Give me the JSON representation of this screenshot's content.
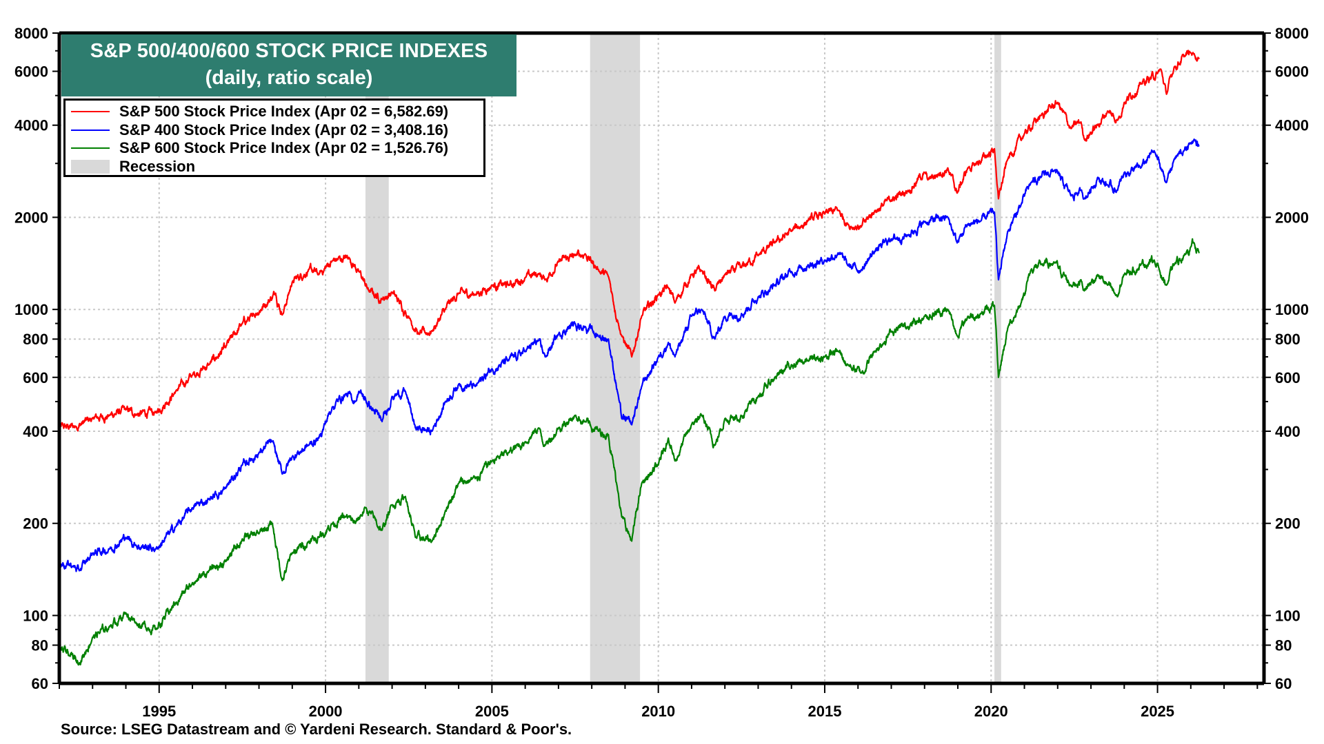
{
  "chart_data": {
    "type": "line",
    "title": "S&P 500/400/600 STOCK PRICE INDEXES",
    "subtitle": "(daily, ratio scale)",
    "xlabel": "",
    "ylabel": "",
    "y_scale": "log",
    "ylim": [
      60,
      8000
    ],
    "xlim": [
      1992.0,
      2028.2
    ],
    "grid": true,
    "legend_position": "top-left",
    "y_ticks": [
      60,
      80,
      100,
      200,
      400,
      600,
      800,
      1000,
      2000,
      4000,
      6000,
      8000
    ],
    "y_tick_labels": [
      "60",
      "80",
      "100",
      "200",
      "400",
      "600",
      "800",
      "1000",
      "2000",
      "4000",
      "6000",
      "8000"
    ],
    "y_minor_ticks": [
      70,
      90,
      300,
      500,
      700,
      900,
      3000,
      5000,
      7000
    ],
    "x_ticks": [
      1995,
      2000,
      2005,
      2010,
      2015,
      2020,
      2025
    ],
    "x_tick_labels": [
      "1995",
      "2000",
      "2005",
      "2010",
      "2015",
      "2020",
      "2025"
    ],
    "recessions": [
      {
        "start": 2001.2,
        "end": 2001.9
      },
      {
        "start": 2007.95,
        "end": 2009.45
      },
      {
        "start": 2020.1,
        "end": 2020.3
      }
    ],
    "series": [
      {
        "name": "S&P 500 Stock Price Index (Apr 02 = 6,582.69)",
        "color": "#ff0000",
        "x": [
          1992.0,
          1992.5,
          1993.0,
          1993.5,
          1994.0,
          1994.3,
          1994.9,
          1995.5,
          1996.0,
          1996.5,
          1997.0,
          1997.5,
          1997.8,
          1998.5,
          1998.7,
          1999.0,
          1999.5,
          1999.8,
          2000.2,
          2000.7,
          2001.0,
          2001.3,
          2001.7,
          2002.0,
          2002.5,
          2002.8,
          2003.2,
          2003.6,
          2004.0,
          2004.5,
          2005.0,
          2005.5,
          2006.0,
          2006.4,
          2006.6,
          2007.0,
          2007.5,
          2007.8,
          2008.2,
          2008.5,
          2008.8,
          2008.9,
          2009.2,
          2009.5,
          2010.0,
          2010.3,
          2010.5,
          2011.0,
          2011.3,
          2011.7,
          2012.0,
          2012.5,
          2013.0,
          2013.5,
          2014.0,
          2014.5,
          2015.0,
          2015.4,
          2015.7,
          2016.1,
          2016.5,
          2017.0,
          2017.5,
          2018.0,
          2018.1,
          2018.7,
          2018.98,
          2019.3,
          2019.5,
          2020.1,
          2020.22,
          2020.5,
          2021.0,
          2021.5,
          2022.0,
          2022.4,
          2022.7,
          2022.8,
          2023.2,
          2023.5,
          2023.8,
          2024.0,
          2024.5,
          2025.0,
          2025.1,
          2025.27,
          2025.5,
          2025.8,
          2026.0,
          2026.1,
          2026.25
        ],
        "y": [
          410,
          415,
          440,
          450,
          470,
          455,
          460,
          540,
          610,
          660,
          750,
          900,
          950,
          1130,
          960,
          1230,
          1350,
          1300,
          1440,
          1480,
          1330,
          1150,
          1080,
          1140,
          950,
          830,
          850,
          1000,
          1130,
          1120,
          1200,
          1200,
          1270,
          1310,
          1250,
          1430,
          1500,
          1520,
          1350,
          1280,
          900,
          820,
          700,
          950,
          1120,
          1180,
          1050,
          1300,
          1340,
          1150,
          1300,
          1370,
          1500,
          1650,
          1800,
          1950,
          2050,
          2110,
          1900,
          1860,
          2100,
          2280,
          2450,
          2800,
          2650,
          2900,
          2400,
          2900,
          2950,
          3350,
          2300,
          3100,
          3750,
          4300,
          4750,
          3900,
          4100,
          3600,
          4000,
          4450,
          4150,
          4750,
          5450,
          5900,
          6100,
          5050,
          6200,
          6700,
          6900,
          6850,
          6583
        ]
      },
      {
        "name": "S&P 400 Stock Price Index (Apr 02 = 3,408.16)",
        "color": "#0000ff",
        "x": [
          1992.0,
          1992.4,
          1992.6,
          1993.0,
          1993.5,
          1994.0,
          1994.3,
          1994.9,
          1995.5,
          1996.0,
          1996.5,
          1997.0,
          1997.5,
          1998.0,
          1998.4,
          1998.7,
          1999.0,
          1999.5,
          1999.8,
          2000.2,
          2000.6,
          2000.9,
          2001.0,
          2001.7,
          2002.0,
          2002.4,
          2002.7,
          2003.2,
          2003.6,
          2004.0,
          2004.5,
          2005.0,
          2005.5,
          2006.0,
          2006.4,
          2006.6,
          2007.0,
          2007.5,
          2007.8,
          2008.2,
          2008.5,
          2008.8,
          2008.9,
          2009.2,
          2009.5,
          2010.0,
          2010.3,
          2010.5,
          2011.0,
          2011.3,
          2011.7,
          2012.0,
          2012.5,
          2013.0,
          2013.5,
          2014.0,
          2014.5,
          2015.0,
          2015.4,
          2015.7,
          2016.1,
          2016.5,
          2017.0,
          2017.5,
          2018.0,
          2018.7,
          2018.98,
          2019.3,
          2019.7,
          2020.1,
          2020.22,
          2020.5,
          2020.9,
          2021.2,
          2021.5,
          2021.9,
          2022.4,
          2022.7,
          2022.8,
          2023.2,
          2023.5,
          2023.8,
          2024.0,
          2024.5,
          2024.9,
          2025.27,
          2025.5,
          2025.8,
          2026.0,
          2026.1,
          2026.25
        ],
        "y": [
          150,
          145,
          140,
          160,
          165,
          180,
          170,
          165,
          195,
          225,
          240,
          260,
          310,
          340,
          370,
          290,
          330,
          360,
          380,
          480,
          530,
          500,
          540,
          430,
          520,
          540,
          410,
          400,
          500,
          570,
          560,
          640,
          680,
          730,
          790,
          700,
          830,
          900,
          880,
          820,
          800,
          520,
          440,
          420,
          560,
          700,
          780,
          700,
          950,
          1000,
          800,
          950,
          970,
          1100,
          1200,
          1330,
          1400,
          1450,
          1530,
          1390,
          1350,
          1550,
          1700,
          1750,
          1930,
          2000,
          1650,
          1900,
          1950,
          2080,
          1250,
          1800,
          2200,
          2600,
          2700,
          2850,
          2350,
          2450,
          2300,
          2700,
          2550,
          2450,
          2800,
          2900,
          3300,
          2600,
          3100,
          3300,
          3500,
          3600,
          3408
        ]
      },
      {
        "name": "S&P 600 Stock Price Index (Apr 02 = 1,526.76)",
        "color": "#008000",
        "x": [
          1992.0,
          1992.3,
          1992.6,
          1993.0,
          1993.5,
          1994.0,
          1994.3,
          1994.9,
          1995.5,
          1996.0,
          1996.5,
          1997.0,
          1997.5,
          1998.0,
          1998.4,
          1998.7,
          1999.0,
          1999.5,
          1999.8,
          2000.2,
          2000.6,
          2000.9,
          2001.2,
          2001.7,
          2002.0,
          2002.4,
          2002.7,
          2003.2,
          2003.6,
          2004.0,
          2004.5,
          2005.0,
          2005.5,
          2006.0,
          2006.4,
          2006.6,
          2007.0,
          2007.5,
          2007.8,
          2008.2,
          2008.5,
          2008.8,
          2008.9,
          2009.2,
          2009.5,
          2010.0,
          2010.3,
          2010.5,
          2011.0,
          2011.3,
          2011.7,
          2012.0,
          2012.5,
          2013.0,
          2013.5,
          2014.0,
          2014.5,
          2015.0,
          2015.4,
          2015.7,
          2016.1,
          2016.5,
          2017.0,
          2017.5,
          2018.0,
          2018.7,
          2018.98,
          2019.3,
          2019.7,
          2020.1,
          2020.22,
          2020.5,
          2020.9,
          2021.2,
          2021.5,
          2021.9,
          2022.4,
          2022.7,
          2022.8,
          2023.2,
          2023.5,
          2023.8,
          2024.0,
          2024.5,
          2024.9,
          2025.27,
          2025.5,
          2025.8,
          2026.0,
          2026.1,
          2026.25
        ],
        "y": [
          78,
          74,
          70,
          85,
          92,
          102,
          95,
          90,
          110,
          128,
          140,
          150,
          178,
          185,
          200,
          130,
          160,
          175,
          180,
          200,
          210,
          200,
          225,
          190,
          230,
          245,
          180,
          175,
          220,
          270,
          280,
          320,
          340,
          370,
          410,
          360,
          410,
          450,
          430,
          400,
          390,
          250,
          210,
          175,
          270,
          310,
          380,
          320,
          420,
          450,
          360,
          440,
          450,
          520,
          600,
          660,
          680,
          700,
          730,
          660,
          620,
          730,
          850,
          880,
          950,
          1000,
          820,
          950,
          970,
          1030,
          600,
          870,
          1050,
          1350,
          1400,
          1420,
          1200,
          1250,
          1150,
          1300,
          1200,
          1100,
          1300,
          1400,
          1450,
          1200,
          1400,
          1500,
          1600,
          1650,
          1527
        ]
      }
    ]
  },
  "legend": {
    "items": [
      {
        "label": "S&P 500 Stock Price Index (Apr 02 = 6,582.69)",
        "color": "#ff0000"
      },
      {
        "label": "S&P 400 Stock Price Index (Apr 02 = 3,408.16)",
        "color": "#0000ff"
      },
      {
        "label": "S&P 600 Stock Price Index (Apr 02 = 1,526.76)",
        "color": "#008000"
      },
      {
        "label": "Recession",
        "color": "#d9d9d9"
      }
    ]
  },
  "header": {
    "title": "S&P 500/400/600 STOCK PRICE INDEXES",
    "subtitle": "(daily, ratio scale)",
    "background": "#2e7d6f"
  },
  "footer": {
    "source": "Source: LSEG Datastream and © Yardeni Research. Standard & Poor's."
  }
}
